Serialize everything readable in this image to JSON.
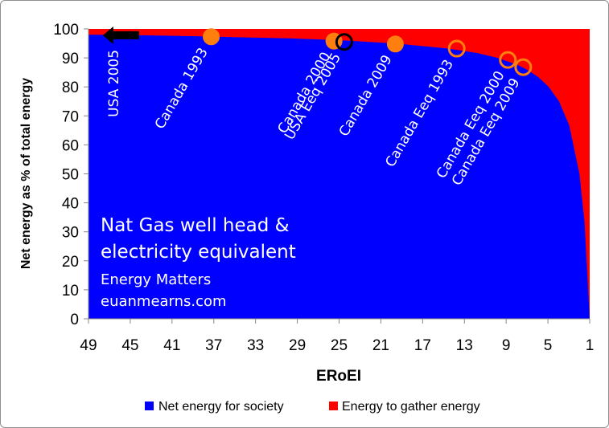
{
  "chart_data": {
    "type": "area",
    "xlabel": "ERoEI",
    "ylabel": "Net energy as % of total energy",
    "x_ticks": [
      49,
      45,
      41,
      37,
      33,
      29,
      25,
      21,
      17,
      13,
      9,
      5,
      1
    ],
    "y_ticks": [
      0,
      10,
      20,
      30,
      40,
      50,
      60,
      70,
      80,
      90,
      100
    ],
    "xlim": [
      50,
      1
    ],
    "ylim": [
      0,
      100
    ],
    "grid": false,
    "legend_position": "bottom",
    "series": [
      {
        "name": "Net energy for society",
        "color": "#0000ff",
        "x": [
          50,
          45,
          40,
          35,
          30,
          25,
          20,
          15,
          12,
          10,
          8,
          7,
          6,
          5,
          4,
          3,
          2,
          1.5,
          1
        ],
        "values": [
          98.0,
          97.8,
          97.5,
          97.1,
          96.7,
          96.0,
          95.0,
          93.3,
          91.7,
          90.0,
          87.5,
          85.7,
          83.3,
          80.0,
          75.0,
          66.7,
          50.0,
          33.3,
          0
        ]
      },
      {
        "name": "Energy to gather energy",
        "color": "#ff0000",
        "fill_to": 100
      }
    ],
    "markers": [
      {
        "label": "USA 2005",
        "x": 46,
        "y": 97.8,
        "style": "arrow-left"
      },
      {
        "label": "Canada 1993",
        "x": 38,
        "y": 97.3,
        "style": "filled"
      },
      {
        "label": "Canada 2000",
        "x": 26,
        "y": 95.8,
        "style": "filled"
      },
      {
        "label": "USA Eeq 2005",
        "x": 25,
        "y": 95.5,
        "style": "open-black"
      },
      {
        "label": "Canada 2009",
        "x": 20,
        "y": 94.8,
        "style": "filled"
      },
      {
        "label": "Canada Eeq 1993",
        "x": 14,
        "y": 93.2,
        "style": "open-orange"
      },
      {
        "label": "Canada Eeq 2000",
        "x": 9,
        "y": 89.3,
        "style": "open-orange"
      },
      {
        "label": "Canada Eeq 2009",
        "x": 7.5,
        "y": 86.8,
        "style": "open-orange"
      }
    ],
    "annotation_lines": [
      {
        "text": "Nat Gas well head &",
        "size": "large"
      },
      {
        "text": "electricity equivalent",
        "size": "large"
      },
      {
        "text": "Energy Matters",
        "size": "small"
      },
      {
        "text": "euanmearns.com",
        "size": "small"
      }
    ],
    "colors": {
      "marker_orange": "#ff7f0e",
      "marker_black": "#000000"
    }
  }
}
